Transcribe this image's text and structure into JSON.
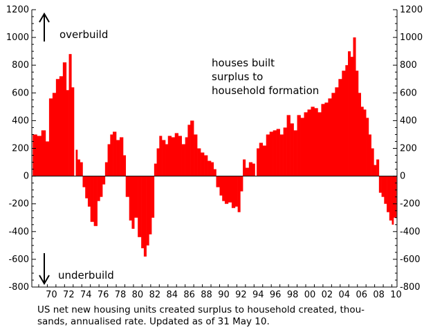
{
  "chart_data": {
    "type": "bar",
    "color": "#ff0000",
    "ylim": [
      -800,
      1200
    ],
    "yticks": [
      "1200",
      "1000",
      "800",
      "600",
      "400",
      "200",
      "0",
      "-200",
      "-400",
      "-600",
      "-800"
    ],
    "ytick_values": [
      1200,
      1000,
      800,
      600,
      400,
      200,
      0,
      -200,
      -400,
      -600,
      -800
    ],
    "xticks": [
      "70",
      "72",
      "74",
      "76",
      "78",
      "80",
      "82",
      "84",
      "86",
      "88",
      "90",
      "92",
      "94",
      "96",
      "98",
      "00",
      "02",
      "04",
      "06",
      "08",
      "10"
    ],
    "xtick_years": [
      1970,
      1972,
      1974,
      1976,
      1978,
      1980,
      1982,
      1984,
      1986,
      1988,
      1990,
      1992,
      1994,
      1996,
      1998,
      2000,
      2002,
      2004,
      2006,
      2008,
      2010
    ],
    "xlim_years": [
      1968.2,
      2010.6
    ],
    "grid": false,
    "series": [
      {
        "x_years": [
          1968.3,
          1968.8,
          1969.3,
          1969.8,
          1970.2,
          1970.6,
          1971.0,
          1971.4,
          1971.8,
          1972.2,
          1972.5,
          1972.8,
          1973.1,
          1973.3,
          1973.5,
          1973.8,
          1974.1,
          1974.4,
          1974.7,
          1975.0,
          1975.4,
          1975.8,
          1976.1,
          1976.4,
          1976.7,
          1977.0,
          1977.3,
          1977.6,
          1978.0,
          1978.4,
          1978.8,
          1979.1,
          1979.5,
          1979.8,
          1980.1,
          1980.5,
          1980.9,
          1981.2,
          1981.5,
          1981.8,
          1982.1,
          1982.4,
          1982.7,
          1983.0,
          1983.3,
          1983.7,
          1984.0,
          1984.4,
          1984.8,
          1985.2,
          1985.6,
          1986.0,
          1986.3,
          1986.6,
          1987.0,
          1987.4,
          1987.8,
          1988.2,
          1988.6,
          1989.0,
          1989.3,
          1989.6,
          1990.0,
          1990.3,
          1990.6,
          1991.0,
          1991.4,
          1991.8,
          1992.1,
          1992.4,
          1992.7,
          1993.0,
          1993.4,
          1993.8,
          1994.1,
          1994.3,
          1994.6,
          1995.0,
          1995.4,
          1995.8,
          1996.2,
          1996.6,
          1997.0,
          1997.4,
          1997.8,
          1998.2,
          1998.6,
          1999.0,
          1999.4,
          1999.8,
          2000.2,
          2000.6,
          2001.0,
          2001.4,
          2001.8,
          2002.2,
          2002.6,
          2003.0,
          2003.4,
          2003.8,
          2004.2,
          2004.6,
          2004.9,
          2005.2,
          2005.5,
          2005.8,
          2006.1,
          2006.4,
          2006.7,
          2007.0,
          2007.3,
          2007.6,
          2007.9,
          2008.2,
          2008.5,
          2008.8,
          2009.1,
          2009.4,
          2009.7,
          2010.0,
          2010.2
        ],
        "values": [
          300,
          290,
          330,
          250,
          560,
          600,
          700,
          720,
          820,
          620,
          880,
          640,
          0,
          190,
          120,
          100,
          -80,
          -160,
          -220,
          -330,
          -360,
          -180,
          -150,
          -60,
          100,
          230,
          300,
          320,
          260,
          280,
          150,
          -150,
          -320,
          -380,
          -300,
          -440,
          -520,
          -580,
          -500,
          -420,
          -300,
          90,
          200,
          290,
          260,
          230,
          290,
          280,
          310,
          290,
          230,
          280,
          370,
          400,
          300,
          200,
          170,
          150,
          110,
          100,
          50,
          -80,
          -140,
          -180,
          -200,
          -190,
          -230,
          -220,
          -260,
          -110,
          120,
          60,
          100,
          90,
          0,
          200,
          240,
          220,
          300,
          320,
          330,
          340,
          300,
          350,
          440,
          380,
          330,
          440,
          420,
          460,
          480,
          500,
          490,
          460,
          520,
          530,
          560,
          600,
          640,
          700,
          760,
          800,
          900,
          860,
          1000,
          760,
          600,
          500,
          480,
          420,
          300,
          200,
          80,
          120,
          -120,
          -150,
          -200,
          -260,
          -320,
          -350,
          -300
        ]
      }
    ],
    "annotations": {
      "top": "overbuild",
      "bottom": "underbuild",
      "center_lines": [
        "houses built",
        "surplus to",
        "household formation"
      ]
    },
    "caption_lines": [
      "US net new housing units created surplus to household created, thou-",
      "sands, annualised rate. Updated as of 31 May 10."
    ]
  }
}
